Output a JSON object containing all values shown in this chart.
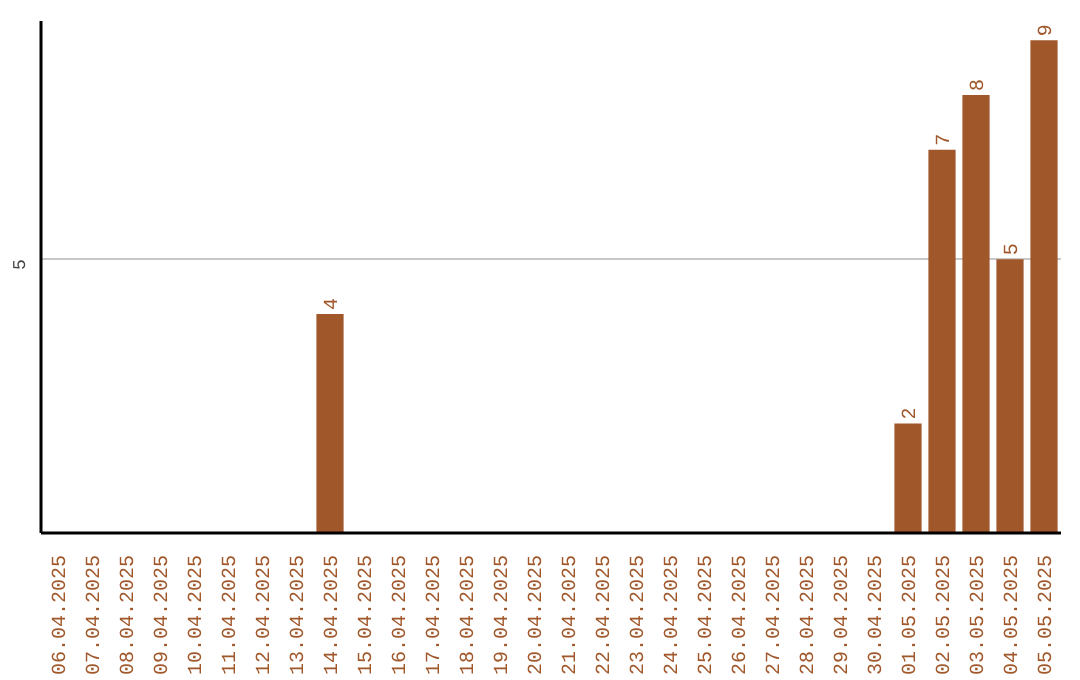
{
  "chart_data": {
    "type": "bar",
    "categories": [
      "06.04.2025",
      "07.04.2025",
      "08.04.2025",
      "09.04.2025",
      "10.04.2025",
      "11.04.2025",
      "12.04.2025",
      "13.04.2025",
      "14.04.2025",
      "15.04.2025",
      "16.04.2025",
      "17.04.2025",
      "18.04.2025",
      "19.04.2025",
      "20.04.2025",
      "21.04.2025",
      "22.04.2025",
      "23.04.2025",
      "24.04.2025",
      "25.04.2025",
      "26.04.2025",
      "27.04.2025",
      "28.04.2025",
      "29.04.2025",
      "30.04.2025",
      "01.05.2025",
      "02.05.2025",
      "03.05.2025",
      "04.05.2025",
      "05.05.2025"
    ],
    "values": [
      0,
      0,
      0,
      0,
      0,
      0,
      0,
      0,
      4,
      0,
      0,
      0,
      0,
      0,
      0,
      0,
      0,
      0,
      0,
      0,
      0,
      0,
      0,
      0,
      0,
      2,
      7,
      8,
      5,
      9
    ],
    "value_labels": [
      null,
      null,
      null,
      null,
      null,
      null,
      null,
      null,
      "4",
      null,
      null,
      null,
      null,
      null,
      null,
      null,
      null,
      null,
      null,
      null,
      null,
      null,
      null,
      null,
      null,
      "2",
      "7",
      "8",
      "5",
      "9"
    ],
    "color": "#a0572a",
    "ylim": [
      0,
      9.35
    ],
    "yticks": [
      5
    ],
    "grid": "y"
  }
}
